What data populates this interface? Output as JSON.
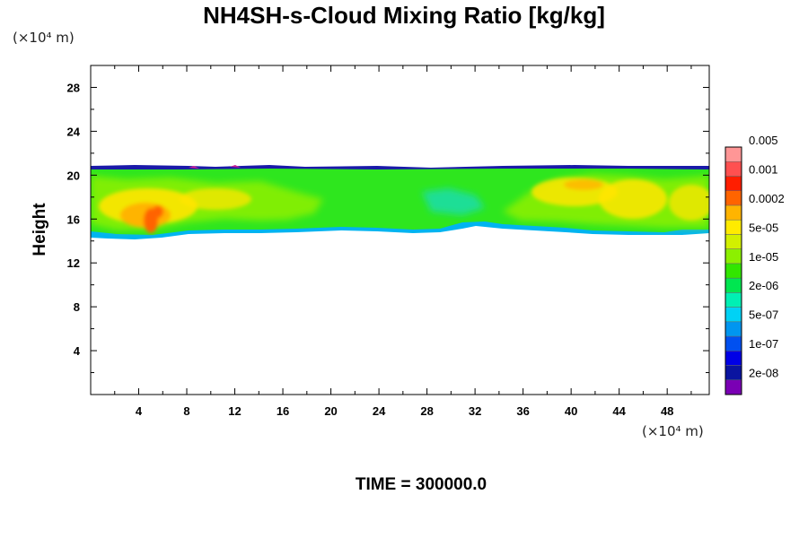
{
  "chart_data": {
    "type": "heatmap",
    "title": "NH4SH-s-Cloud Mixing Ratio [kg/kg]",
    "ylabel": "Height",
    "xlabel": "",
    "x_unit": "(×10⁴ m)",
    "y_unit": "(×10⁴ m)",
    "xlim": [
      0,
      51.5
    ],
    "ylim": [
      0,
      30
    ],
    "x_ticks": [
      4,
      8,
      12,
      16,
      20,
      24,
      28,
      32,
      36,
      40,
      44,
      48
    ],
    "y_ticks": [
      4,
      8,
      12,
      16,
      20,
      24,
      28
    ],
    "time_label": "TIME = 300000.0",
    "cloud_layer": {
      "bottom_km_approx": 14.8,
      "top_km_approx": 20.6
    },
    "colorbar": {
      "colors": [
        "#7a00b4",
        "#0a14a0",
        "#0000e6",
        "#0050f0",
        "#0096f0",
        "#00d2f5",
        "#00f0b4",
        "#00e650",
        "#32e600",
        "#8cf000",
        "#d2f000",
        "#ffeb00",
        "#ffb400",
        "#ff6400",
        "#ff1e00",
        "#ff5050",
        "#ff9696"
      ],
      "labels": [
        "2e-08",
        "1e-07",
        "5e-07",
        "2e-06",
        "1e-05",
        "5e-05",
        "0.0002",
        "0.001",
        "0.005"
      ]
    }
  }
}
